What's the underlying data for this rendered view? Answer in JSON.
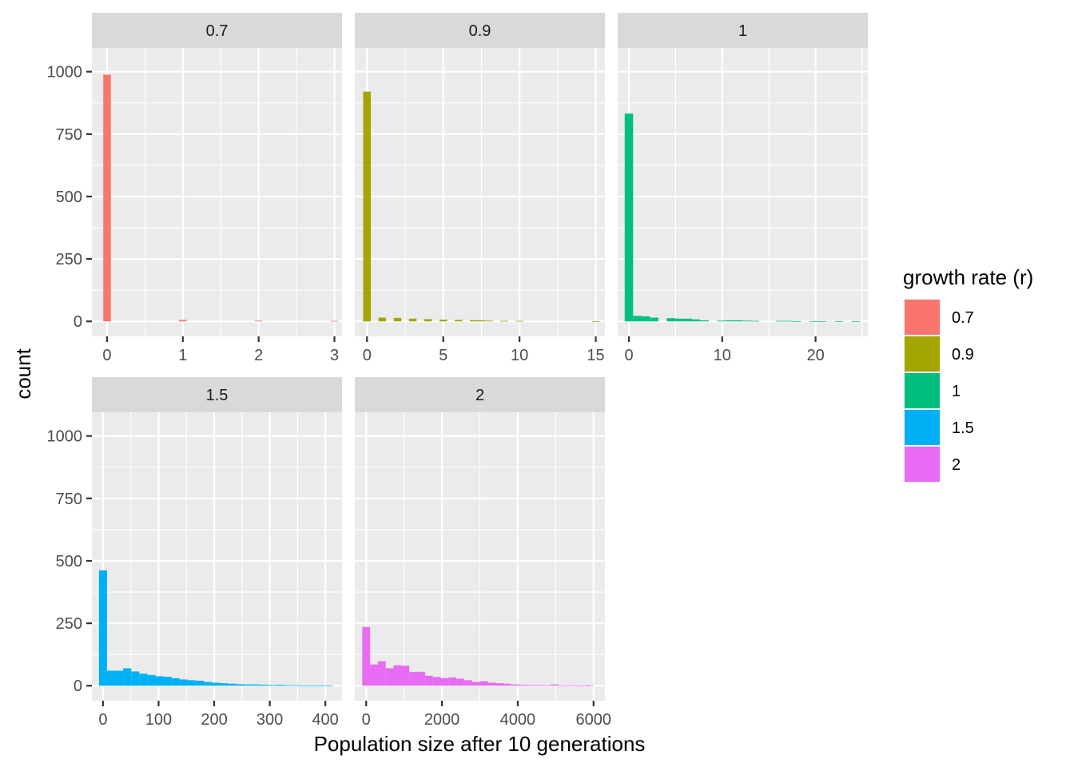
{
  "chart_data": {
    "type": "bar",
    "subtype": "faceted-histogram",
    "xlabel": "Population size after 10 generations",
    "ylabel": "count",
    "ylim": [
      0,
      1000
    ],
    "yticks": [
      0,
      250,
      500,
      750,
      1000
    ],
    "facet_layout": "wrap 3 columns, 2 rows, shared y axis, free x scales",
    "grid": true,
    "legend": {
      "title": "growth rate (r)",
      "placement": "right",
      "entries": [
        {
          "label": "0.7",
          "color": "#F8766D"
        },
        {
          "label": "0.9",
          "color": "#A3A500"
        },
        {
          "label": "1",
          "color": "#00BF7D"
        },
        {
          "label": "1.5",
          "color": "#00B0F6"
        },
        {
          "label": "2",
          "color": "#E76BF3"
        }
      ]
    },
    "panels": [
      {
        "label": "0.7",
        "color": "#F8766D",
        "xlim": [
          -0.2,
          3.1
        ],
        "xticks": [
          0,
          1,
          2,
          3
        ],
        "bin_width": 0.1,
        "bins": [
          {
            "x": 0,
            "count": 988
          },
          {
            "x": 1,
            "count": 6
          },
          {
            "x": 2,
            "count": 3
          },
          {
            "x": 3,
            "count": 2
          }
        ]
      },
      {
        "label": "0.9",
        "color": "#A3A500",
        "xlim": [
          -0.8,
          15.6
        ],
        "xticks": [
          0,
          5,
          10,
          15
        ],
        "bin_width": 0.5,
        "bins": [
          {
            "x": 0,
            "count": 920
          },
          {
            "x": 1,
            "count": 15
          },
          {
            "x": 2,
            "count": 14
          },
          {
            "x": 3,
            "count": 11
          },
          {
            "x": 4,
            "count": 9
          },
          {
            "x": 5,
            "count": 7
          },
          {
            "x": 6,
            "count": 6
          },
          {
            "x": 7,
            "count": 5
          },
          {
            "x": 7.5,
            "count": 4
          },
          {
            "x": 8,
            "count": 3
          },
          {
            "x": 9,
            "count": 2
          },
          {
            "x": 10,
            "count": 2
          },
          {
            "x": 15,
            "count": 1
          }
        ]
      },
      {
        "label": "1",
        "color": "#00BF7D",
        "xlim": [
          -1.2,
          25.6
        ],
        "xticks": [
          0,
          10,
          20
        ],
        "bin_width": 0.9,
        "bins": [
          {
            "x": 0,
            "count": 832
          },
          {
            "x": 0.9,
            "count": 22
          },
          {
            "x": 1.8,
            "count": 20
          },
          {
            "x": 2.7,
            "count": 15
          },
          {
            "x": 4.5,
            "count": 13
          },
          {
            "x": 5.4,
            "count": 11
          },
          {
            "x": 6.3,
            "count": 11
          },
          {
            "x": 7.2,
            "count": 8
          },
          {
            "x": 8.1,
            "count": 4
          },
          {
            "x": 9.9,
            "count": 3
          },
          {
            "x": 10.8,
            "count": 4
          },
          {
            "x": 11.7,
            "count": 4
          },
          {
            "x": 12.6,
            "count": 3
          },
          {
            "x": 13.5,
            "count": 2
          },
          {
            "x": 16.2,
            "count": 2
          },
          {
            "x": 17.1,
            "count": 2
          },
          {
            "x": 18,
            "count": 1
          },
          {
            "x": 19.8,
            "count": 1
          },
          {
            "x": 20.7,
            "count": 1
          },
          {
            "x": 22.5,
            "count": 1
          },
          {
            "x": 24.3,
            "count": 1
          }
        ]
      },
      {
        "label": "1.5",
        "color": "#00B0F6",
        "xlim": [
          -20,
          430
        ],
        "xticks": [
          0,
          100,
          200,
          300,
          400
        ],
        "bin_width": 14.5,
        "bins": [
          {
            "x": 0,
            "count": 462
          },
          {
            "x": 14.5,
            "count": 60
          },
          {
            "x": 29,
            "count": 60
          },
          {
            "x": 43.5,
            "count": 70
          },
          {
            "x": 58,
            "count": 57
          },
          {
            "x": 72.5,
            "count": 48
          },
          {
            "x": 87,
            "count": 43
          },
          {
            "x": 101.5,
            "count": 38
          },
          {
            "x": 116,
            "count": 36
          },
          {
            "x": 130.5,
            "count": 30
          },
          {
            "x": 145,
            "count": 25
          },
          {
            "x": 159.5,
            "count": 22
          },
          {
            "x": 174,
            "count": 20
          },
          {
            "x": 188.5,
            "count": 15
          },
          {
            "x": 203,
            "count": 12
          },
          {
            "x": 217.5,
            "count": 10
          },
          {
            "x": 232,
            "count": 8
          },
          {
            "x": 246.5,
            "count": 6
          },
          {
            "x": 261,
            "count": 5
          },
          {
            "x": 275.5,
            "count": 5
          },
          {
            "x": 290,
            "count": 4
          },
          {
            "x": 304.5,
            "count": 3
          },
          {
            "x": 319,
            "count": 4
          },
          {
            "x": 333.5,
            "count": 2
          },
          {
            "x": 348,
            "count": 2
          },
          {
            "x": 362.5,
            "count": 1
          },
          {
            "x": 377,
            "count": 1
          },
          {
            "x": 391.5,
            "count": 1
          },
          {
            "x": 406,
            "count": 1
          }
        ]
      },
      {
        "label": "2",
        "color": "#E76BF3",
        "xlim": [
          -300,
          6300
        ],
        "xticks": [
          0,
          2000,
          4000,
          6000
        ],
        "bin_width": 207,
        "bins": [
          {
            "x": 0,
            "count": 235
          },
          {
            "x": 207,
            "count": 85
          },
          {
            "x": 414,
            "count": 98
          },
          {
            "x": 621,
            "count": 70
          },
          {
            "x": 828,
            "count": 82
          },
          {
            "x": 1035,
            "count": 80
          },
          {
            "x": 1242,
            "count": 55
          },
          {
            "x": 1449,
            "count": 56
          },
          {
            "x": 1656,
            "count": 40
          },
          {
            "x": 1863,
            "count": 35
          },
          {
            "x": 2070,
            "count": 30
          },
          {
            "x": 2277,
            "count": 33
          },
          {
            "x": 2484,
            "count": 28
          },
          {
            "x": 2691,
            "count": 22
          },
          {
            "x": 2898,
            "count": 15
          },
          {
            "x": 3105,
            "count": 18
          },
          {
            "x": 3312,
            "count": 12
          },
          {
            "x": 3519,
            "count": 10
          },
          {
            "x": 3726,
            "count": 8
          },
          {
            "x": 3933,
            "count": 5
          },
          {
            "x": 4140,
            "count": 4
          },
          {
            "x": 4347,
            "count": 3
          },
          {
            "x": 4554,
            "count": 3
          },
          {
            "x": 4761,
            "count": 2
          },
          {
            "x": 4968,
            "count": 5
          },
          {
            "x": 5175,
            "count": 1
          },
          {
            "x": 5382,
            "count": 2
          },
          {
            "x": 5589,
            "count": 1
          },
          {
            "x": 5796,
            "count": 1
          },
          {
            "x": 5900,
            "count": 2
          }
        ]
      }
    ]
  }
}
